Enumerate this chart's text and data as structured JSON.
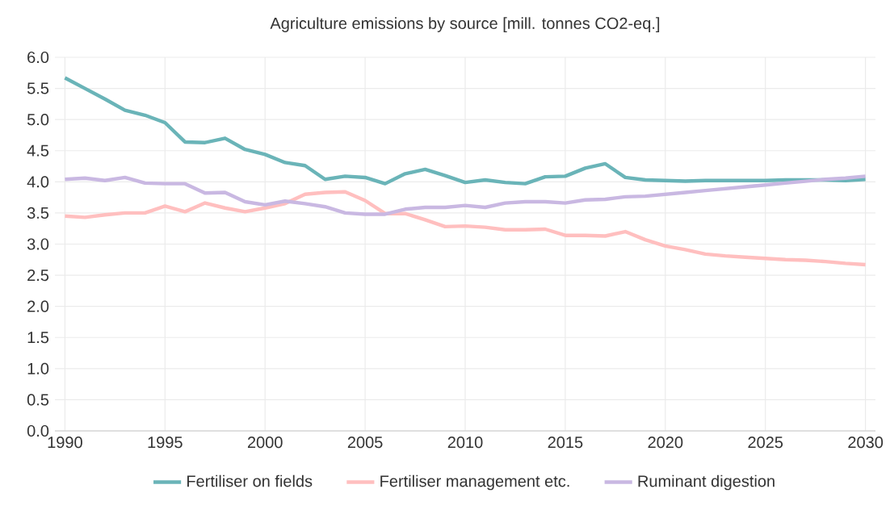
{
  "chart_data": {
    "type": "line",
    "title": "Agriculture emissions by source [mill. tonnes CO2-eq.]",
    "x": [
      1990,
      1991,
      1992,
      1993,
      1994,
      1995,
      1996,
      1997,
      1998,
      1999,
      2000,
      2001,
      2002,
      2003,
      2004,
      2005,
      2006,
      2007,
      2008,
      2009,
      2010,
      2011,
      2012,
      2013,
      2014,
      2015,
      2016,
      2017,
      2018,
      2019,
      2020,
      2021,
      2022,
      2023,
      2024,
      2025,
      2026,
      2027,
      2028,
      2029,
      2030
    ],
    "series": [
      {
        "name": "Fertiliser on fields",
        "color": "#6ab4b8",
        "values": [
          5.67,
          5.5,
          5.33,
          5.15,
          5.07,
          4.95,
          4.64,
          4.63,
          4.7,
          4.52,
          4.44,
          4.31,
          4.26,
          4.04,
          4.09,
          4.07,
          3.97,
          4.13,
          4.2,
          4.1,
          3.99,
          4.03,
          3.99,
          3.97,
          4.08,
          4.09,
          4.22,
          4.29,
          4.07,
          4.03,
          4.02,
          4.01,
          4.02,
          4.02,
          4.02,
          4.02,
          4.03,
          4.03,
          4.03,
          4.02,
          4.04
        ]
      },
      {
        "name": "Fertiliser management etc.",
        "color": "#ffbfbf",
        "values": [
          3.45,
          3.43,
          3.47,
          3.5,
          3.5,
          3.61,
          3.52,
          3.66,
          3.58,
          3.52,
          3.58,
          3.65,
          3.8,
          3.83,
          3.84,
          3.7,
          3.49,
          3.49,
          3.39,
          3.28,
          3.29,
          3.27,
          3.23,
          3.23,
          3.24,
          3.14,
          3.14,
          3.13,
          3.2,
          3.07,
          2.97,
          2.91,
          2.84,
          2.81,
          2.79,
          2.77,
          2.75,
          2.74,
          2.72,
          2.69,
          2.67
        ]
      },
      {
        "name": "Ruminant digestion",
        "color": "#c9b8e2",
        "values": [
          4.04,
          4.06,
          4.02,
          4.07,
          3.98,
          3.97,
          3.97,
          3.82,
          3.83,
          3.68,
          3.63,
          3.69,
          3.65,
          3.6,
          3.5,
          3.48,
          3.48,
          3.56,
          3.59,
          3.59,
          3.62,
          3.59,
          3.66,
          3.68,
          3.68,
          3.66,
          3.71,
          3.72,
          3.76,
          3.77,
          3.8,
          3.83,
          3.86,
          3.89,
          3.92,
          3.95,
          3.98,
          4.01,
          4.04,
          4.06,
          4.09
        ]
      }
    ],
    "xlim": [
      1989.5,
      2030.5
    ],
    "xticks": [
      1990,
      1995,
      2000,
      2005,
      2010,
      2015,
      2020,
      2025,
      2030
    ],
    "ylim": [
      0,
      6
    ],
    "yticks": [
      {
        "value": 0,
        "label": "0.0"
      },
      {
        "value": 0.5,
        "label": "0.5"
      },
      {
        "value": 1,
        "label": "1.0"
      },
      {
        "value": 1.5,
        "label": "1.5"
      },
      {
        "value": 2,
        "label": "2.0"
      },
      {
        "value": 2.5,
        "label": "2.5"
      },
      {
        "value": 3,
        "label": "3.0"
      },
      {
        "value": 3.5,
        "label": "3.5"
      },
      {
        "value": 4,
        "label": "4.0"
      },
      {
        "value": 4.5,
        "label": "4.5"
      },
      {
        "value": 5,
        "label": "5.0"
      },
      {
        "value": 5.5,
        "label": "5.5"
      },
      {
        "value": 6,
        "label": "6.0"
      }
    ],
    "grid": true,
    "legend": "bottom",
    "marker": "none",
    "line_style": "solid"
  }
}
